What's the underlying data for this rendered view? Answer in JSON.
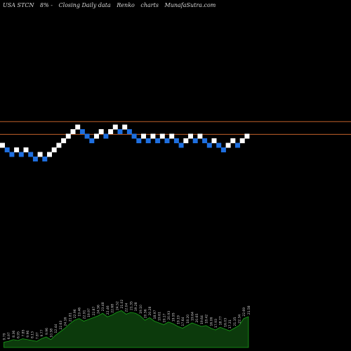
{
  "header": {
    "ticker": "USA STCN",
    "change": "8% -",
    "description": "Closing Daily data",
    "chart_kind": "Renko",
    "suffix": "charts",
    "site": "MunafaSutra.com"
  },
  "colors": {
    "background": "#000000",
    "up_brick": "#ffffff",
    "down_brick": "#1e6fe0",
    "ref_line": "#c0602a",
    "volume_fill": "#0c3a0c",
    "volume_stroke": "#18a018"
  },
  "chart_data": {
    "type": "renko",
    "bricks": [
      {
        "level": 0,
        "dir": "up"
      },
      {
        "level": -1,
        "dir": "down"
      },
      {
        "level": -2,
        "dir": "down"
      },
      {
        "level": -1,
        "dir": "up"
      },
      {
        "level": -2,
        "dir": "down"
      },
      {
        "level": -1,
        "dir": "up"
      },
      {
        "level": -2,
        "dir": "down"
      },
      {
        "level": -3,
        "dir": "down"
      },
      {
        "level": -2,
        "dir": "up"
      },
      {
        "level": -3,
        "dir": "down"
      },
      {
        "level": -2,
        "dir": "up"
      },
      {
        "level": -1,
        "dir": "up"
      },
      {
        "level": 0,
        "dir": "up"
      },
      {
        "level": 1,
        "dir": "up"
      },
      {
        "level": 2,
        "dir": "up"
      },
      {
        "level": 3,
        "dir": "up"
      },
      {
        "level": 4,
        "dir": "up"
      },
      {
        "level": 3,
        "dir": "down"
      },
      {
        "level": 2,
        "dir": "down"
      },
      {
        "level": 1,
        "dir": "down"
      },
      {
        "level": 2,
        "dir": "up"
      },
      {
        "level": 3,
        "dir": "up"
      },
      {
        "level": 2,
        "dir": "down"
      },
      {
        "level": 3,
        "dir": "up"
      },
      {
        "level": 4,
        "dir": "up"
      },
      {
        "level": 3,
        "dir": "down"
      },
      {
        "level": 4,
        "dir": "up"
      },
      {
        "level": 3,
        "dir": "down"
      },
      {
        "level": 2,
        "dir": "down"
      },
      {
        "level": 1,
        "dir": "down"
      },
      {
        "level": 2,
        "dir": "up"
      },
      {
        "level": 1,
        "dir": "down"
      },
      {
        "level": 2,
        "dir": "up"
      },
      {
        "level": 1,
        "dir": "down"
      },
      {
        "level": 2,
        "dir": "up"
      },
      {
        "level": 1,
        "dir": "down"
      },
      {
        "level": 2,
        "dir": "up"
      },
      {
        "level": 1,
        "dir": "down"
      },
      {
        "level": 0,
        "dir": "down"
      },
      {
        "level": 1,
        "dir": "up"
      },
      {
        "level": 2,
        "dir": "up"
      },
      {
        "level": 1,
        "dir": "down"
      },
      {
        "level": 2,
        "dir": "up"
      },
      {
        "level": 1,
        "dir": "down"
      },
      {
        "level": 0,
        "dir": "down"
      },
      {
        "level": 1,
        "dir": "up"
      },
      {
        "level": 0,
        "dir": "down"
      },
      {
        "level": -1,
        "dir": "down"
      },
      {
        "level": 0,
        "dir": "up"
      },
      {
        "level": 1,
        "dir": "up"
      },
      {
        "level": 0,
        "dir": "down"
      },
      {
        "level": 1,
        "dir": "up"
      },
      {
        "level": 2,
        "dir": "up"
      }
    ],
    "reference_lines": [
      {
        "level": 5.2
      },
      {
        "level": 2.4
      }
    ],
    "volume": [
      6,
      7,
      9,
      8,
      10,
      9,
      8,
      7,
      10,
      12,
      9,
      14,
      18,
      22,
      27,
      31,
      33,
      30,
      32,
      34,
      36,
      39,
      35,
      37,
      40,
      42,
      38,
      40,
      39,
      36,
      31,
      34,
      30,
      28,
      26,
      29,
      27,
      24,
      22,
      25,
      28,
      26,
      24,
      25,
      22,
      20,
      23,
      21,
      19,
      22,
      25,
      33,
      35
    ],
    "volume_labels": [
      "9.79",
      "6.97",
      "8.36",
      "6.95",
      "7.85",
      "9.96",
      "8.13",
      "7.87",
      "9.77",
      "9.96",
      "10.58",
      "12.44",
      "22.63",
      "24.16",
      "21.81",
      "22.96",
      "19.46",
      "22.91",
      "19.97",
      "22.87",
      "24.56",
      "23.48",
      "22.46",
      "22.68",
      "24.52",
      "21.02",
      "22.04",
      "21.35",
      "19.28",
      "19.10",
      "20.56",
      "20.28",
      "18.97",
      "19.61",
      "19.17",
      "20.93",
      "19.95",
      "19.19",
      "17.64",
      "18.20",
      "19.64",
      "20.65",
      "19.64",
      "18.42",
      "16.06",
      "17.93",
      "18.77",
      "16.03",
      "17.31",
      "21.35",
      "22.34",
      "22.69",
      "21.58"
    ],
    "title": "",
    "xlabel": "",
    "ylabel": ""
  }
}
